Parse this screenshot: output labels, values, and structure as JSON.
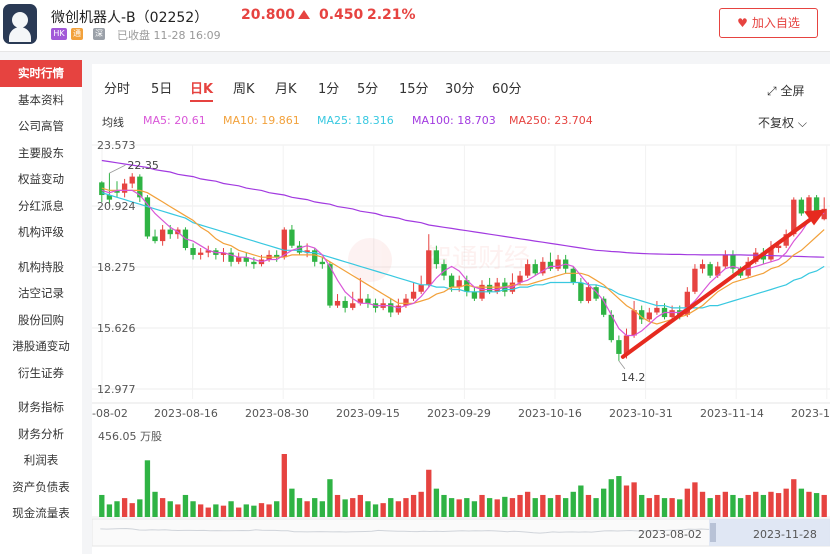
{
  "header": {
    "stock_name": "微创机器人-B（02252）",
    "price": "20.800",
    "change": "0.450",
    "change_pct": "2.21%",
    "tag_hk": "HK",
    "tag_tong": "通",
    "tag_shen": "深",
    "status": "已收盘 11-28 16:09",
    "watch_button": "加入自选"
  },
  "sidebar": {
    "items": [
      "实时行情",
      "基本资料",
      "公司高管",
      "主要股东",
      "权益变动",
      "分红派息",
      "机构评级",
      "机构持股",
      "沽空记录",
      "股份回购",
      "港股通变动",
      "衍生证券",
      "财务指标",
      "财务分析",
      "利润表",
      "资产负债表",
      "现金流量表"
    ]
  },
  "tabs": [
    "分时",
    "5日",
    "日K",
    "周K",
    "月K",
    "1分",
    "5分",
    "15分",
    "30分",
    "60分"
  ],
  "active_tab": "日K",
  "fullscreen_label": "全屏",
  "ma": {
    "label": "均线",
    "ma5": "MA5: 20.61",
    "ma10": "MA10: 19.861",
    "ma25": "MA25: 18.316",
    "ma100": "MA100: 18.703",
    "ma250": "MA250: 23.704"
  },
  "fuquan_label": "不复权",
  "colors": {
    "up": "#e64340",
    "down": "#2fb344",
    "ma5": "#d957d8",
    "ma10": "#f2a13b",
    "ma25": "#38c8e0",
    "ma100": "#a23ae0"
  },
  "chart_data": {
    "type": "candlestick",
    "y_ticks": [
      "23.573",
      "20.924",
      "18.275",
      "15.626",
      "12.977"
    ],
    "x_ticks": [
      "-08-02",
      "2023-08-16",
      "2023-08-30",
      "2023-09-15",
      "2023-09-29",
      "2023-10-16",
      "2023-10-31",
      "2023-11-14",
      "2023-1"
    ],
    "high_label": "22.35",
    "low_label": "14.2",
    "volume_label": "456.05 万股",
    "range_start": "2023-08-02",
    "range_end": "2023-11-28",
    "ylim": [
      12.977,
      23.573
    ],
    "candles": [
      [
        21.95,
        21.4,
        22.0,
        21.1
      ],
      [
        21.4,
        21.2,
        22.35,
        21.0
      ],
      [
        21.6,
        21.5,
        22.0,
        21.3
      ],
      [
        21.5,
        21.9,
        22.1,
        21.3
      ],
      [
        21.9,
        22.2,
        22.35,
        21.7
      ],
      [
        22.2,
        21.3,
        22.3,
        21.1
      ],
      [
        21.3,
        19.6,
        21.4,
        19.5
      ],
      [
        19.6,
        19.4,
        19.9,
        19.3
      ],
      [
        19.4,
        19.9,
        20.1,
        19.2
      ],
      [
        19.9,
        19.7,
        20.1,
        19.5
      ],
      [
        19.7,
        19.9,
        20.0,
        19.5
      ],
      [
        19.9,
        19.1,
        20.0,
        19.0
      ],
      [
        19.1,
        18.8,
        19.3,
        18.6
      ],
      [
        18.8,
        18.9,
        19.1,
        18.6
      ],
      [
        18.9,
        19.0,
        19.2,
        18.7
      ],
      [
        19.0,
        18.8,
        19.1,
        18.6
      ],
      [
        18.8,
        18.9,
        19.1,
        18.5
      ],
      [
        18.9,
        18.5,
        19.1,
        18.3
      ],
      [
        18.5,
        18.7,
        18.9,
        18.4
      ],
      [
        18.7,
        18.5,
        18.9,
        18.3
      ],
      [
        18.5,
        18.4,
        18.7,
        18.2
      ],
      [
        18.4,
        18.6,
        18.8,
        18.3
      ],
      [
        18.6,
        18.8,
        19.0,
        18.5
      ],
      [
        18.8,
        18.7,
        19.0,
        18.5
      ],
      [
        18.7,
        19.9,
        20.0,
        18.6
      ],
      [
        19.9,
        19.2,
        20.1,
        19.1
      ],
      [
        19.2,
        18.9,
        19.4,
        18.8
      ],
      [
        18.9,
        19.0,
        19.3,
        18.7
      ],
      [
        19.0,
        18.5,
        19.1,
        18.3
      ],
      [
        18.5,
        18.4,
        18.7,
        18.2
      ],
      [
        18.4,
        16.6,
        18.5,
        16.5
      ],
      [
        16.6,
        16.8,
        17.1,
        16.5
      ],
      [
        16.8,
        16.5,
        17.0,
        16.3
      ],
      [
        16.5,
        16.7,
        17.2,
        16.4
      ],
      [
        16.7,
        16.9,
        17.8,
        16.6
      ],
      [
        16.9,
        16.7,
        17.1,
        16.5
      ],
      [
        16.7,
        16.5,
        16.9,
        16.3
      ],
      [
        16.5,
        16.7,
        16.9,
        16.4
      ],
      [
        16.7,
        16.3,
        16.9,
        16.1
      ],
      [
        16.3,
        16.6,
        16.9,
        16.2
      ],
      [
        16.6,
        16.9,
        17.1,
        16.5
      ],
      [
        16.9,
        17.2,
        17.6,
        16.8
      ],
      [
        17.2,
        17.5,
        17.9,
        17.1
      ],
      [
        17.5,
        19.0,
        19.7,
        17.4
      ],
      [
        19.0,
        18.4,
        19.2,
        18.2
      ],
      [
        18.4,
        17.9,
        18.6,
        17.7
      ],
      [
        17.9,
        17.4,
        18.0,
        17.2
      ],
      [
        17.4,
        17.7,
        17.9,
        17.2
      ],
      [
        17.7,
        17.2,
        17.9,
        17.0
      ],
      [
        17.2,
        16.9,
        17.4,
        16.8
      ],
      [
        16.9,
        17.5,
        17.7,
        16.8
      ],
      [
        17.5,
        17.2,
        17.8,
        17.1
      ],
      [
        17.2,
        17.6,
        17.8,
        17.1
      ],
      [
        17.6,
        17.2,
        17.8,
        17.0
      ],
      [
        17.2,
        17.6,
        18.0,
        17.1
      ],
      [
        17.6,
        17.9,
        18.1,
        17.5
      ],
      [
        17.9,
        18.4,
        18.6,
        17.8
      ],
      [
        18.4,
        18.0,
        18.6,
        17.9
      ],
      [
        18.0,
        18.5,
        18.7,
        17.9
      ],
      [
        18.5,
        18.2,
        18.9,
        18.1
      ],
      [
        18.2,
        18.6,
        18.8,
        18.1
      ],
      [
        18.6,
        18.2,
        18.8,
        18.0
      ],
      [
        18.2,
        17.6,
        18.3,
        17.5
      ],
      [
        17.6,
        16.8,
        17.8,
        16.7
      ],
      [
        16.8,
        17.4,
        17.6,
        16.7
      ],
      [
        17.4,
        16.9,
        17.5,
        16.8
      ],
      [
        16.9,
        16.2,
        17.0,
        16.1
      ],
      [
        16.2,
        15.1,
        16.4,
        15.0
      ],
      [
        15.1,
        14.5,
        15.3,
        14.2
      ],
      [
        14.5,
        15.3,
        15.6,
        14.3
      ],
      [
        15.3,
        16.4,
        16.8,
        15.2
      ],
      [
        16.4,
        16.0,
        16.6,
        15.8
      ],
      [
        16.0,
        16.3,
        16.5,
        15.9
      ],
      [
        16.3,
        16.5,
        16.8,
        16.2
      ],
      [
        16.5,
        16.1,
        16.7,
        16.0
      ],
      [
        16.1,
        16.4,
        16.6,
        16.0
      ],
      [
        16.4,
        16.2,
        16.6,
        16.0
      ],
      [
        16.2,
        17.2,
        17.4,
        16.1
      ],
      [
        17.2,
        18.2,
        18.4,
        17.1
      ],
      [
        18.2,
        18.4,
        18.6,
        18.0
      ],
      [
        18.4,
        17.9,
        18.5,
        17.8
      ],
      [
        17.9,
        18.3,
        18.5,
        17.8
      ],
      [
        18.3,
        18.8,
        19.0,
        18.2
      ],
      [
        18.8,
        18.2,
        19.0,
        18.0
      ],
      [
        18.2,
        17.9,
        18.3,
        17.8
      ],
      [
        17.9,
        18.5,
        18.7,
        17.8
      ],
      [
        18.5,
        18.9,
        19.1,
        18.4
      ],
      [
        18.9,
        18.6,
        19.1,
        18.4
      ],
      [
        18.6,
        19.1,
        19.4,
        18.5
      ],
      [
        19.1,
        19.2,
        19.4,
        18.9
      ],
      [
        19.2,
        19.7,
        19.9,
        19.1
      ],
      [
        19.7,
        21.2,
        21.3,
        19.6
      ],
      [
        21.2,
        20.6,
        21.3,
        20.5
      ],
      [
        20.6,
        21.3,
        21.4,
        20.4
      ],
      [
        21.3,
        20.6,
        21.4,
        20.4
      ],
      [
        20.35,
        20.8,
        21.3,
        20.3
      ]
    ],
    "ma5": [
      21.6,
      21.5,
      21.6,
      21.6,
      21.6,
      21.4,
      21.0,
      20.6,
      20.3,
      20.0,
      19.8,
      19.5,
      19.4,
      19.2,
      19.0,
      18.9,
      18.9,
      18.8,
      18.7,
      18.7,
      18.6,
      18.5,
      18.6,
      18.6,
      18.8,
      19.0,
      19.1,
      19.2,
      19.1,
      18.8,
      18.3,
      17.7,
      17.2,
      16.9,
      16.7,
      16.7,
      16.6,
      16.6,
      16.6,
      16.5,
      16.6,
      16.7,
      17.0,
      17.4,
      17.8,
      18.1,
      18.3,
      18.1,
      17.7,
      17.4,
      17.3,
      17.3,
      17.3,
      17.4,
      17.4,
      17.6,
      17.7,
      17.9,
      18.1,
      18.3,
      18.3,
      18.4,
      18.3,
      17.9,
      17.5,
      17.2,
      16.8,
      16.2,
      15.6,
      15.3,
      15.3,
      15.5,
      15.8,
      16.1,
      16.3,
      16.3,
      16.3,
      16.5,
      16.8,
      17.2,
      17.6,
      17.9,
      18.2,
      18.3,
      18.2,
      18.2,
      18.3,
      18.4,
      18.5,
      18.6,
      18.9,
      19.4,
      19.8,
      20.3,
      20.6,
      20.6
    ],
    "ma10": [
      21.7,
      21.6,
      21.6,
      21.6,
      21.6,
      21.6,
      21.5,
      21.3,
      21.1,
      20.9,
      20.7,
      20.5,
      20.3,
      20.0,
      19.8,
      19.5,
      19.3,
      19.2,
      19.0,
      18.9,
      18.8,
      18.7,
      18.7,
      18.7,
      18.7,
      18.8,
      18.8,
      18.8,
      18.8,
      18.7,
      18.5,
      18.3,
      18.1,
      17.9,
      17.7,
      17.5,
      17.3,
      17.1,
      16.9,
      16.7,
      16.7,
      16.7,
      16.8,
      16.9,
      17.1,
      17.2,
      17.4,
      17.4,
      17.5,
      17.4,
      17.4,
      17.4,
      17.4,
      17.4,
      17.5,
      17.5,
      17.5,
      17.6,
      17.7,
      17.8,
      17.9,
      18.0,
      18.0,
      18.0,
      17.9,
      17.7,
      17.5,
      17.2,
      16.9,
      16.6,
      16.4,
      16.1,
      15.9,
      15.8,
      15.9,
      16.0,
      16.1,
      16.2,
      16.4,
      16.6,
      16.9,
      17.2,
      17.4,
      17.6,
      17.7,
      17.8,
      17.9,
      18.0,
      18.2,
      18.3,
      18.5,
      18.8,
      19.0,
      19.3,
      19.6,
      19.9
    ],
    "ma25": [
      21.5,
      21.4,
      21.3,
      21.2,
      21.1,
      21.0,
      20.9,
      20.8,
      20.7,
      20.6,
      20.5,
      20.4,
      20.2,
      20.1,
      20.0,
      19.9,
      19.8,
      19.7,
      19.6,
      19.5,
      19.4,
      19.3,
      19.2,
      19.1,
      19.0,
      19.0,
      19.0,
      18.9,
      18.9,
      18.8,
      18.7,
      18.6,
      18.5,
      18.4,
      18.3,
      18.2,
      18.1,
      18.0,
      17.9,
      17.8,
      17.7,
      17.6,
      17.5,
      17.5,
      17.4,
      17.4,
      17.3,
      17.3,
      17.2,
      17.2,
      17.2,
      17.2,
      17.2,
      17.3,
      17.3,
      17.4,
      17.4,
      17.5,
      17.5,
      17.6,
      17.6,
      17.6,
      17.6,
      17.6,
      17.5,
      17.5,
      17.4,
      17.3,
      17.1,
      17.0,
      16.9,
      16.8,
      16.7,
      16.6,
      16.6,
      16.5,
      16.5,
      16.5,
      16.5,
      16.5,
      16.6,
      16.6,
      16.7,
      16.8,
      16.9,
      17.0,
      17.1,
      17.2,
      17.3,
      17.4,
      17.5,
      17.7,
      17.8,
      18.0,
      18.1,
      18.3
    ],
    "ma100": [
      22.9,
      22.85,
      22.8,
      22.75,
      22.7,
      22.65,
      22.6,
      22.5,
      22.45,
      22.4,
      22.3,
      22.25,
      22.2,
      22.1,
      22.05,
      22.0,
      21.9,
      21.85,
      21.8,
      21.7,
      21.65,
      21.6,
      21.5,
      21.45,
      21.4,
      21.3,
      21.25,
      21.2,
      21.1,
      21.05,
      21.0,
      20.9,
      20.85,
      20.8,
      20.7,
      20.65,
      20.6,
      20.5,
      20.45,
      20.4,
      20.3,
      20.25,
      20.2,
      20.1,
      20.05,
      20.0,
      19.95,
      19.9,
      19.85,
      19.8,
      19.75,
      19.7,
      19.65,
      19.6,
      19.55,
      19.5,
      19.45,
      19.4,
      19.35,
      19.3,
      19.25,
      19.2,
      19.15,
      19.1,
      19.05,
      19.0,
      18.98,
      18.95,
      18.93,
      18.9,
      18.88,
      18.86,
      18.85,
      18.84,
      18.83,
      18.82,
      18.82,
      18.81,
      18.81,
      18.8,
      18.8,
      18.8,
      18.8,
      18.8,
      18.8,
      18.79,
      18.79,
      18.78,
      18.77,
      18.76,
      18.75,
      18.74,
      18.73,
      18.72,
      18.71,
      18.7
    ],
    "volumes": [
      0.35,
      0.2,
      0.25,
      0.3,
      0.22,
      0.28,
      0.9,
      0.4,
      0.3,
      0.25,
      0.2,
      0.35,
      0.25,
      0.2,
      0.15,
      0.2,
      0.18,
      0.25,
      0.15,
      0.2,
      0.18,
      0.22,
      0.2,
      0.25,
      1.0,
      0.45,
      0.3,
      0.25,
      0.3,
      0.25,
      0.6,
      0.35,
      0.28,
      0.3,
      0.35,
      0.25,
      0.2,
      0.22,
      0.3,
      0.25,
      0.3,
      0.35,
      0.4,
      0.75,
      0.45,
      0.35,
      0.3,
      0.28,
      0.3,
      0.25,
      0.35,
      0.3,
      0.28,
      0.32,
      0.3,
      0.35,
      0.4,
      0.3,
      0.35,
      0.3,
      0.35,
      0.3,
      0.4,
      0.5,
      0.35,
      0.3,
      0.45,
      0.6,
      0.65,
      0.5,
      0.55,
      0.35,
      0.3,
      0.35,
      0.3,
      0.3,
      0.28,
      0.45,
      0.55,
      0.4,
      0.3,
      0.35,
      0.4,
      0.35,
      0.3,
      0.35,
      0.4,
      0.35,
      0.4,
      0.38,
      0.45,
      0.6,
      0.45,
      0.4,
      0.38,
      0.35
    ]
  }
}
